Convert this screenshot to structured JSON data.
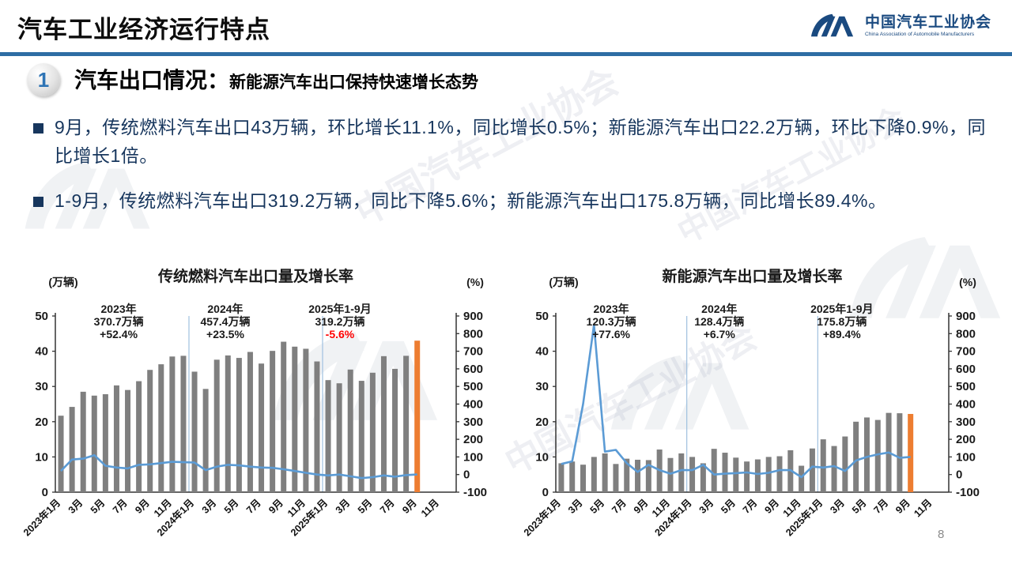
{
  "slide": {
    "title": "汽车工业经济运行特点",
    "page_number": "8"
  },
  "logo": {
    "name_cn": "中国汽车工业协会",
    "name_en": "China Association of Automobile Manufacturers"
  },
  "section": {
    "badge": "1",
    "title": "汽车出口情况：",
    "subtitle": "新能源汽车出口保持快速增长态势"
  },
  "bullets": [
    "9月，传统燃料汽车出口43万辆，环比增长11.1%，同比增长0.5%；新能源汽车出口22.2万辆，环比下降0.9%，同比增长1倍。",
    "1-9月，传统燃料汽车出口319.2万辆，同比下降5.6%；新能源汽车出口175.8万辆，同比增长89.4%。"
  ],
  "watermark_text": "中国汽车工业协会",
  "colors": {
    "header_rule": "#2E6DA4",
    "body_text": "#17365D",
    "bar_gray": "#7F7F7F",
    "bar_orange": "#ED7D31",
    "line_blue": "#5B9BD5",
    "divider_blue": "#9FC0DF",
    "negative_red": "#FF0000"
  },
  "chart_data": [
    {
      "type": "bar+line",
      "title": "传统燃料汽车出口量及增长率",
      "bar_unit_label": "(万辆)",
      "line_unit_label": "(%)",
      "left_axis": {
        "min": 0,
        "max": 50,
        "step": 10
      },
      "right_axis": {
        "min": -100,
        "max": 900,
        "step": 100
      },
      "x_labels": [
        "2023年1月",
        "3月",
        "5月",
        "7月",
        "9月",
        "11月",
        "2024年1月",
        "3月",
        "5月",
        "7月",
        "9月",
        "11月",
        "2025年1月",
        "3月",
        "5月",
        "7月",
        "9月",
        "11月"
      ],
      "x_label_every": 2,
      "total_slots": 36,
      "divider_months": [
        12,
        24
      ],
      "bars": {
        "name": "出口量（万辆）",
        "color": "#7F7F7F",
        "last_bar_color": "#ED7D31",
        "values": [
          21.7,
          24.2,
          28.5,
          27.4,
          27.8,
          30.3,
          29.0,
          31.5,
          34.7,
          36.3,
          38.5,
          38.7,
          34.2,
          29.3,
          37.6,
          38.8,
          38.1,
          39.8,
          36.5,
          40.1,
          42.7,
          41.3,
          40.7,
          37.1,
          31.8,
          30.9,
          34.8,
          31.6,
          33.9,
          38.6,
          35.0,
          38.7,
          43.0
        ]
      },
      "line": {
        "name": "同比增长率（%）",
        "color": "#5B9BD5",
        "values": [
          20,
          85,
          90,
          110,
          50,
          40,
          35,
          55,
          58,
          65,
          72,
          70,
          68,
          25,
          45,
          55,
          52,
          45,
          40,
          38,
          30,
          20,
          10,
          0,
          -5,
          0,
          -10,
          -20,
          -15,
          -5,
          -12,
          -3,
          0.5
        ]
      },
      "annotations": [
        {
          "x_frac": 0.158,
          "lines": [
            "2023年",
            "370.7万辆",
            "+52.4%"
          ],
          "colors": [
            "#1a1a1a",
            "#1a1a1a",
            "#1a1a1a"
          ]
        },
        {
          "x_frac": 0.424,
          "lines": [
            "2024年",
            "457.4万辆",
            "+23.5%"
          ],
          "colors": [
            "#1a1a1a",
            "#1a1a1a",
            "#1a1a1a"
          ]
        },
        {
          "x_frac": 0.71,
          "lines": [
            "2025年1-9月",
            "319.2万辆",
            "-5.6%"
          ],
          "colors": [
            "#1a1a1a",
            "#1a1a1a",
            "#FF0000"
          ]
        }
      ]
    },
    {
      "type": "bar+line",
      "title": "新能源汽车出口量及增长率",
      "bar_unit_label": "(万辆)",
      "line_unit_label": "(%)",
      "left_axis": {
        "min": 0,
        "max": 50,
        "step": 10
      },
      "right_axis": {
        "min": -100,
        "max": 900,
        "step": 100
      },
      "x_labels": [
        "2023年1月",
        "3月",
        "5月",
        "7月",
        "9月",
        "11月",
        "2024年1月",
        "3月",
        "5月",
        "7月",
        "9月",
        "11月",
        "2025年1月",
        "3月",
        "5月",
        "7月",
        "9月",
        "11月"
      ],
      "x_label_every": 2,
      "total_slots": 36,
      "divider_months": [
        12,
        24
      ],
      "bars": {
        "name": "出口量（万辆）",
        "color": "#7F7F7F",
        "last_bar_color": "#ED7D31",
        "values": [
          8.2,
          8.7,
          7.8,
          10.0,
          11.0,
          8.0,
          9.5,
          9.2,
          9.1,
          12.1,
          9.7,
          11.0,
          10.0,
          8.2,
          12.3,
          11.2,
          9.8,
          8.7,
          9.3,
          10.0,
          10.2,
          11.9,
          7.5,
          12.4,
          15.0,
          13.1,
          15.8,
          20.0,
          21.2,
          20.5,
          22.5,
          22.4,
          22.2
        ]
      },
      "line": {
        "name": "同比增长率（%）",
        "color": "#5B9BD5",
        "values": [
          60,
          75,
          400,
          850,
          130,
          140,
          65,
          15,
          55,
          25,
          5,
          25,
          25,
          55,
          0,
          5,
          8,
          12,
          3,
          10,
          25,
          25,
          -15,
          45,
          40,
          48,
          20,
          80,
          100,
          115,
          125,
          95,
          100
        ]
      },
      "annotations": [
        {
          "x_frac": 0.141,
          "lines": [
            "2023年",
            "120.3万辆",
            "+77.6%"
          ],
          "colors": [
            "#1a1a1a",
            "#1a1a1a",
            "#1a1a1a"
          ]
        },
        {
          "x_frac": 0.416,
          "lines": [
            "2024年",
            "128.4万辆",
            "+6.7%"
          ],
          "colors": [
            "#1a1a1a",
            "#1a1a1a",
            "#1a1a1a"
          ]
        },
        {
          "x_frac": 0.728,
          "lines": [
            "2025年1-9月",
            "175.8万辆",
            "+89.4%"
          ],
          "colors": [
            "#1a1a1a",
            "#1a1a1a",
            "#1a1a1a"
          ]
        }
      ]
    }
  ]
}
